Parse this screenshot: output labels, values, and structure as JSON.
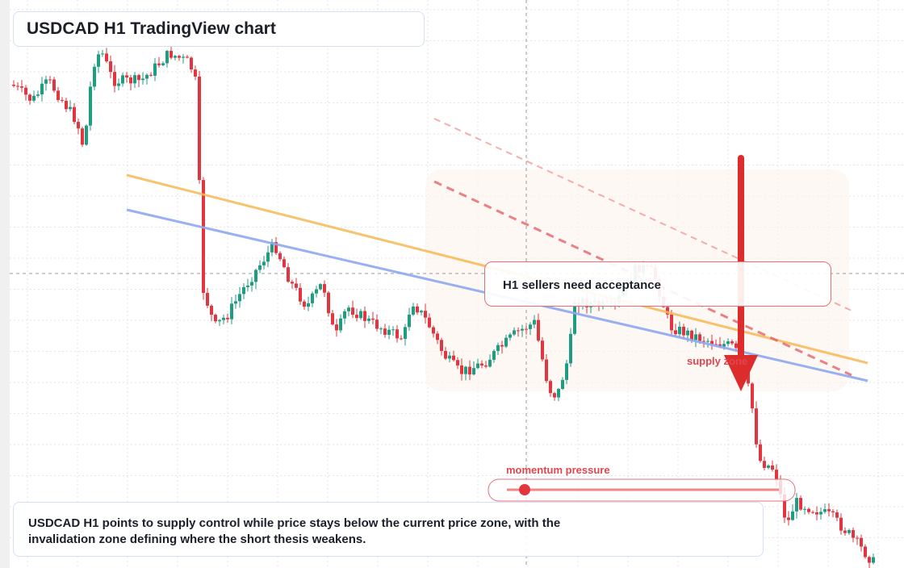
{
  "header": {
    "title": "USDCAD H1 TradingView chart"
  },
  "annotations": {
    "acceptance": "H1 sellers need acceptance",
    "zone": "supply zone",
    "momentum": "momentum pressure"
  },
  "footer": {
    "text": "USDCAD H1 points to supply control while price stays below the current price zone, with the invalidation zone defining where the short thesis weakens."
  }
}
